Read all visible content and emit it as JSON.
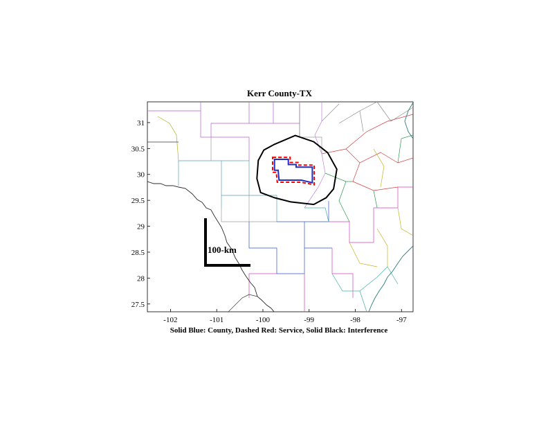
{
  "title": "Kerr County-TX",
  "caption": "Solid Blue: County, Dashed Red: Service, Solid Black: Interference",
  "scale_bar_label": "100-km",
  "map": {
    "lon_range": [
      -102.5,
      -96.75
    ],
    "lat_range": [
      27.35,
      31.4
    ],
    "x_ticks": [
      -102,
      -101,
      -100,
      -99,
      -98,
      -97
    ],
    "y_ticks": [
      27.5,
      28,
      28.5,
      29,
      29.5,
      30,
      30.5,
      31
    ],
    "colors": {
      "county": "#1f2fbf",
      "service": "#ff0000",
      "interference": "#000000",
      "coast": "#2a7d7d"
    },
    "county_outline": [
      [
        -99.75,
        30.29
      ],
      [
        -99.45,
        30.29
      ],
      [
        -99.45,
        30.19
      ],
      [
        -99.28,
        30.19
      ],
      [
        -99.28,
        30.14
      ],
      [
        -98.93,
        30.14
      ],
      [
        -98.93,
        29.84
      ],
      [
        -99.17,
        29.89
      ],
      [
        -99.65,
        29.89
      ],
      [
        -99.67,
        30.08
      ],
      [
        -99.75,
        30.08
      ],
      [
        -99.75,
        30.29
      ]
    ],
    "service_outline": [
      [
        -99.79,
        30.33
      ],
      [
        -99.41,
        30.33
      ],
      [
        -99.41,
        30.23
      ],
      [
        -99.24,
        30.23
      ],
      [
        -99.24,
        30.18
      ],
      [
        -98.89,
        30.18
      ],
      [
        -98.89,
        29.8
      ],
      [
        -99.17,
        29.85
      ],
      [
        -99.69,
        29.85
      ],
      [
        -99.71,
        30.04
      ],
      [
        -99.79,
        30.04
      ],
      [
        -99.79,
        30.33
      ]
    ],
    "interference_outline": [
      [
        -99.75,
        30.58
      ],
      [
        -99.3,
        30.75
      ],
      [
        -98.9,
        30.63
      ],
      [
        -98.6,
        30.42
      ],
      [
        -98.4,
        30.1
      ],
      [
        -98.47,
        29.72
      ],
      [
        -98.63,
        29.55
      ],
      [
        -98.9,
        29.42
      ],
      [
        -99.4,
        29.47
      ],
      [
        -99.75,
        29.55
      ],
      [
        -100.05,
        29.65
      ],
      [
        -100.13,
        29.92
      ],
      [
        -100.1,
        30.27
      ],
      [
        -99.98,
        30.47
      ],
      [
        -99.75,
        30.58
      ]
    ]
  }
}
